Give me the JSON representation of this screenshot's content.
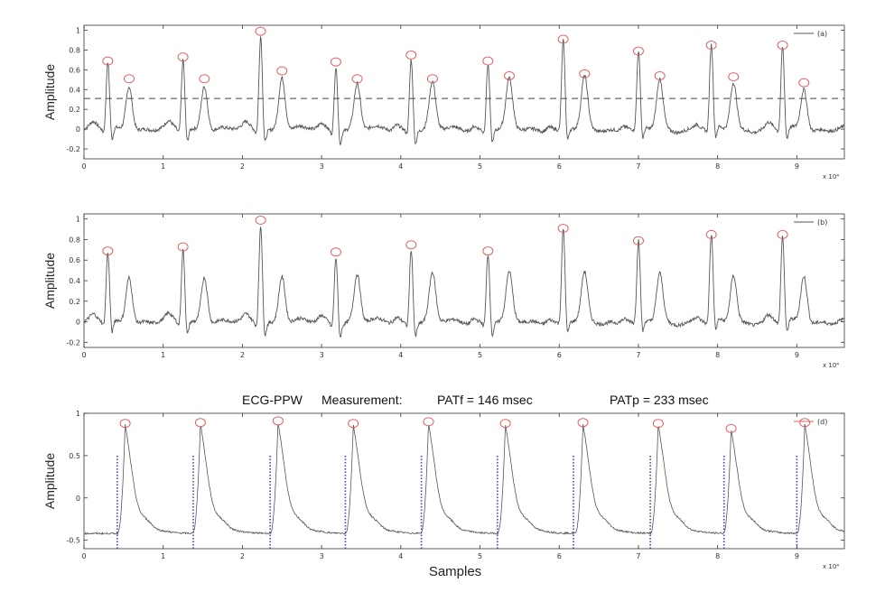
{
  "figure": {
    "title_parts": [
      "ECG-PPW",
      "Measurement:",
      "PATf = 146 msec",
      "PATp = 233 msec"
    ],
    "x_scale_note": "x 10⁴",
    "colors": {
      "trace": "#555555",
      "peak_marker": "#e06060",
      "threshold": "#444444",
      "onset": "#3344dd",
      "axis": "#333333"
    }
  },
  "chart_data": [
    {
      "type": "line",
      "legend": "(a)",
      "legend_position": "top-right",
      "ylabel": "Amplitude",
      "xlabel": "",
      "xlim": [
        0,
        9.6
      ],
      "ylim": [
        -0.3,
        1.05
      ],
      "x_ticks": [
        "0",
        "1",
        "2",
        "3",
        "4",
        "5",
        "6",
        "7",
        "8",
        "9"
      ],
      "y_ticks": [
        "-0.2",
        "0",
        "0.2",
        "0.4",
        "0.6",
        "0.8",
        "1"
      ],
      "threshold": 0.31,
      "beats": [
        {
          "r_x": 0.3,
          "r_y": 0.68,
          "s_x": 0.57,
          "s_y": 0.5
        },
        {
          "r_x": 1.25,
          "r_y": 0.72,
          "s_x": 1.52,
          "s_y": 0.5
        },
        {
          "r_x": 2.23,
          "r_y": 0.98,
          "s_x": 2.5,
          "s_y": 0.58
        },
        {
          "r_x": 3.18,
          "r_y": 0.67,
          "s_x": 3.45,
          "s_y": 0.5
        },
        {
          "r_x": 4.13,
          "r_y": 0.74,
          "s_x": 4.4,
          "s_y": 0.5
        },
        {
          "r_x": 5.1,
          "r_y": 0.68,
          "s_x": 5.37,
          "s_y": 0.53
        },
        {
          "r_x": 6.05,
          "r_y": 0.9,
          "s_x": 6.32,
          "s_y": 0.55
        },
        {
          "r_x": 7.0,
          "r_y": 0.78,
          "s_x": 7.27,
          "s_y": 0.53
        },
        {
          "r_x": 7.92,
          "r_y": 0.84,
          "s_x": 8.2,
          "s_y": 0.52
        },
        {
          "r_x": 8.82,
          "r_y": 0.84,
          "s_x": 9.09,
          "s_y": 0.46
        }
      ],
      "peaks": [
        [
          0.3,
          0.68
        ],
        [
          0.57,
          0.5
        ],
        [
          1.25,
          0.72
        ],
        [
          1.52,
          0.5
        ],
        [
          2.23,
          0.98
        ],
        [
          2.5,
          0.58
        ],
        [
          3.18,
          0.67
        ],
        [
          3.45,
          0.5
        ],
        [
          4.13,
          0.74
        ],
        [
          4.4,
          0.5
        ],
        [
          5.1,
          0.68
        ],
        [
          5.37,
          0.53
        ],
        [
          6.05,
          0.9
        ],
        [
          6.32,
          0.55
        ],
        [
          7.0,
          0.78
        ],
        [
          7.27,
          0.53
        ],
        [
          7.92,
          0.84
        ],
        [
          8.2,
          0.52
        ],
        [
          8.82,
          0.84
        ],
        [
          9.09,
          0.46
        ]
      ]
    },
    {
      "type": "line",
      "legend": "(b)",
      "legend_position": "top-right",
      "ylabel": "Amplitude",
      "xlabel": "",
      "xlim": [
        0,
        9.6
      ],
      "ylim": [
        -0.25,
        1.05
      ],
      "x_ticks": [
        "0",
        "1",
        "2",
        "3",
        "4",
        "5",
        "6",
        "7",
        "8",
        "9"
      ],
      "y_ticks": [
        "-0.2",
        "0",
        "0.2",
        "0.4",
        "0.6",
        "0.8",
        "1"
      ],
      "beats": [
        {
          "r_x": 0.3,
          "r_y": 0.68,
          "s_x": 0.57,
          "s_y": 0.5
        },
        {
          "r_x": 1.25,
          "r_y": 0.72,
          "s_x": 1.52,
          "s_y": 0.5
        },
        {
          "r_x": 2.23,
          "r_y": 0.98,
          "s_x": 2.5,
          "s_y": 0.5
        },
        {
          "r_x": 3.18,
          "r_y": 0.67,
          "s_x": 3.45,
          "s_y": 0.5
        },
        {
          "r_x": 4.13,
          "r_y": 0.74,
          "s_x": 4.4,
          "s_y": 0.5
        },
        {
          "r_x": 5.1,
          "r_y": 0.68,
          "s_x": 5.37,
          "s_y": 0.5
        },
        {
          "r_x": 6.05,
          "r_y": 0.9,
          "s_x": 6.32,
          "s_y": 0.5
        },
        {
          "r_x": 7.0,
          "r_y": 0.78,
          "s_x": 7.27,
          "s_y": 0.5
        },
        {
          "r_x": 7.92,
          "r_y": 0.84,
          "s_x": 8.2,
          "s_y": 0.5
        },
        {
          "r_x": 8.82,
          "r_y": 0.84,
          "s_x": 9.09,
          "s_y": 0.5
        }
      ],
      "peaks": [
        [
          0.3,
          0.68
        ],
        [
          1.25,
          0.72
        ],
        [
          2.23,
          0.98
        ],
        [
          3.18,
          0.67
        ],
        [
          4.13,
          0.74
        ],
        [
          5.1,
          0.68
        ],
        [
          6.05,
          0.9
        ],
        [
          7.0,
          0.78
        ],
        [
          7.92,
          0.84
        ],
        [
          8.82,
          0.84
        ]
      ]
    },
    {
      "type": "line",
      "title": "ECG-PPW Measurement: PATf = 146 msec PATp = 233 msec",
      "legend": "(d)",
      "legend_position": "top-right",
      "ylabel": "Amplitude",
      "xlabel": "Samples",
      "xlim": [
        0,
        9.6
      ],
      "ylim": [
        -0.6,
        1.0
      ],
      "x_ticks": [
        "0",
        "1",
        "2",
        "3",
        "4",
        "5",
        "6",
        "7",
        "8",
        "9"
      ],
      "y_ticks": [
        "-0.5",
        "0",
        "0.5",
        "1"
      ],
      "onset_top": 0.5,
      "onsets": [
        0.42,
        1.38,
        2.35,
        3.3,
        4.26,
        5.22,
        6.18,
        7.15,
        8.08,
        9.0
      ],
      "peaks": [
        [
          0.52,
          0.87
        ],
        [
          1.47,
          0.88
        ],
        [
          2.45,
          0.9
        ],
        [
          3.4,
          0.87
        ],
        [
          4.35,
          0.89
        ],
        [
          5.32,
          0.87
        ],
        [
          6.3,
          0.88
        ],
        [
          7.25,
          0.87
        ],
        [
          8.17,
          0.81
        ],
        [
          9.1,
          0.88
        ]
      ]
    }
  ]
}
